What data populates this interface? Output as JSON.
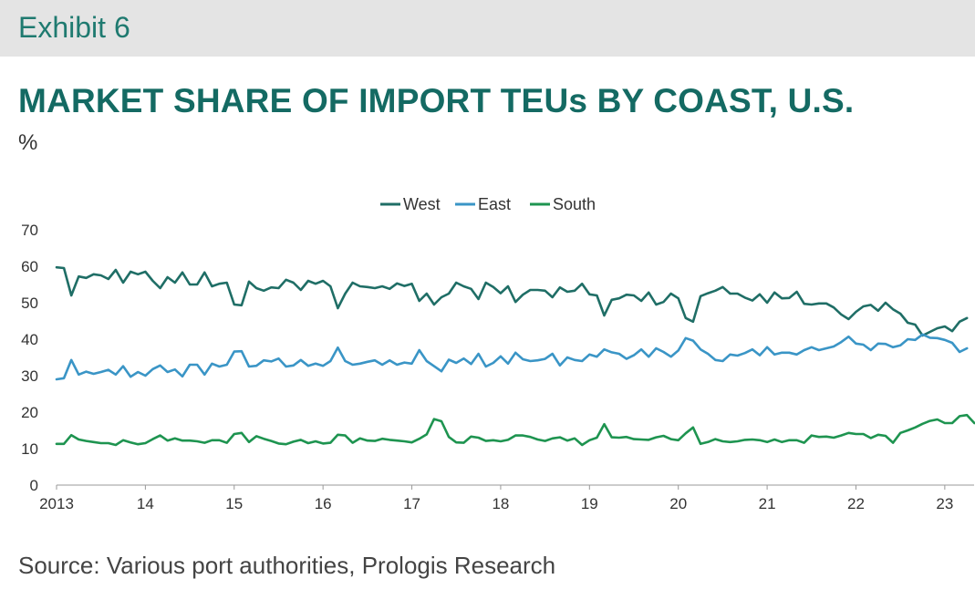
{
  "header": {
    "exhibit": "Exhibit 6",
    "title": "MARKET SHARE OF IMPORT TEUs BY COAST, U.S.",
    "unit": "%"
  },
  "footer": {
    "source": "Source: Various port authorities, Prologis Research"
  },
  "colors": {
    "West": "#1f6e66",
    "East": "#3a95c6",
    "South": "#1e9450",
    "axis": "#999999",
    "text": "#333333"
  },
  "chart_data": {
    "type": "line",
    "ylim": [
      0,
      70
    ],
    "yticks": [
      0,
      10,
      20,
      30,
      40,
      50,
      60,
      70
    ],
    "xlim": [
      2013.0,
      2023.33
    ],
    "xticks": [
      {
        "value": 2013,
        "label": "2013"
      },
      {
        "value": 2014,
        "label": "14"
      },
      {
        "value": 2015,
        "label": "15"
      },
      {
        "value": 2016,
        "label": "16"
      },
      {
        "value": 2017,
        "label": "17"
      },
      {
        "value": 2018,
        "label": "18"
      },
      {
        "value": 2019,
        "label": "19"
      },
      {
        "value": 2020,
        "label": "20"
      },
      {
        "value": 2021,
        "label": "21"
      },
      {
        "value": 2022,
        "label": "22"
      },
      {
        "value": 2023,
        "label": "23"
      }
    ],
    "legend_position": "top-center",
    "grid": false,
    "x_start": "2013-01",
    "x_frequency": "monthly",
    "series": [
      {
        "name": "West",
        "values": [
          59.7,
          59.5,
          52.0,
          57.2,
          56.8,
          57.8,
          57.5,
          56.5,
          59.0,
          55.5,
          58.5,
          57.8,
          58.5,
          56.0,
          54.0,
          57.0,
          55.5,
          58.3,
          55.0,
          55.0,
          58.3,
          54.5,
          55.2,
          55.5,
          49.5,
          49.3,
          55.8,
          54.0,
          53.3,
          54.2,
          54.0,
          56.3,
          55.5,
          53.5,
          56.0,
          55.2,
          56.0,
          54.5,
          48.5,
          52.5,
          55.5,
          54.5,
          54.3,
          54.0,
          54.5,
          53.8,
          55.3,
          54.6,
          55.2,
          50.5,
          52.5,
          49.5,
          51.5,
          52.5,
          55.5,
          54.5,
          53.8,
          51.0,
          55.5,
          54.3,
          52.6,
          54.5,
          50.2,
          52.2,
          53.5,
          53.5,
          53.3,
          51.5,
          54.2,
          53.0,
          53.3,
          55.2,
          52.3,
          52.0,
          46.5,
          50.8,
          51.2,
          52.2,
          52.0,
          50.5,
          52.8,
          49.5,
          50.2,
          52.5,
          51.2,
          45.8,
          44.8,
          51.8,
          52.6,
          53.3,
          54.3,
          52.5,
          52.5,
          51.4,
          50.6,
          52.3,
          50.0,
          52.8,
          51.2,
          51.3,
          53.0,
          49.7,
          49.5,
          49.8,
          49.8,
          48.7,
          46.8,
          45.5,
          47.5,
          49.0,
          49.4,
          47.8,
          50.0,
          48.2,
          47.0,
          44.5,
          44.0,
          41.0,
          42.0,
          43.0,
          43.5,
          42.2,
          44.8,
          45.8
        ]
      },
      {
        "name": "East",
        "values": [
          29.0,
          29.3,
          34.3,
          30.3,
          31.1,
          30.5,
          31.0,
          31.6,
          30.3,
          32.6,
          29.7,
          31.0,
          30.0,
          31.8,
          32.8,
          31.0,
          31.7,
          29.8,
          33.0,
          33.0,
          30.3,
          33.3,
          32.5,
          33.0,
          36.6,
          36.7,
          32.5,
          32.7,
          34.2,
          33.9,
          34.7,
          32.5,
          32.8,
          34.3,
          32.7,
          33.3,
          32.7,
          34.0,
          37.7,
          34.0,
          33.0,
          33.3,
          33.8,
          34.2,
          33.0,
          34.2,
          33.0,
          33.6,
          33.3,
          37.0,
          34.0,
          32.6,
          31.2,
          34.4,
          33.5,
          34.7,
          33.2,
          36.0,
          32.5,
          33.5,
          35.3,
          33.3,
          36.3,
          34.5,
          34.0,
          34.2,
          34.6,
          36.0,
          32.8,
          35.0,
          34.3,
          34.0,
          35.8,
          35.2,
          37.2,
          36.4,
          36.0,
          34.6,
          35.6,
          37.2,
          35.2,
          37.5,
          36.5,
          35.2,
          36.9,
          40.3,
          39.6,
          37.2,
          36.0,
          34.3,
          34.0,
          35.8,
          35.5,
          36.2,
          37.2,
          35.6,
          37.8,
          35.8,
          36.3,
          36.3,
          35.8,
          37.0,
          37.8,
          37.0,
          37.5,
          38.0,
          39.2,
          40.7,
          38.8,
          38.5,
          37.0,
          38.8,
          38.7,
          37.8,
          38.3,
          40.0,
          39.8,
          41.3,
          40.4,
          40.3,
          39.8,
          39.0,
          36.5,
          37.5
        ]
      },
      {
        "name": "South",
        "values": [
          11.3,
          11.3,
          13.7,
          12.5,
          12.1,
          11.8,
          11.5,
          11.5,
          11.0,
          12.3,
          11.7,
          11.2,
          11.5,
          12.6,
          13.6,
          12.2,
          12.8,
          12.2,
          12.2,
          12.0,
          11.6,
          12.3,
          12.3,
          11.6,
          14.0,
          14.3,
          11.8,
          13.4,
          12.7,
          12.1,
          11.4,
          11.2,
          11.9,
          12.4,
          11.5,
          12.0,
          11.4,
          11.6,
          13.8,
          13.6,
          11.6,
          12.8,
          12.2,
          12.1,
          12.7,
          12.4,
          12.2,
          12.0,
          11.7,
          12.7,
          13.9,
          18.1,
          17.5,
          13.2,
          11.7,
          11.6,
          13.3,
          13.0,
          12.1,
          12.3,
          12.0,
          12.4,
          13.6,
          13.6,
          13.2,
          12.5,
          12.1,
          12.8,
          13.1,
          12.2,
          12.8,
          11.0,
          12.3,
          13.0,
          16.7,
          13.1,
          13.0,
          13.2,
          12.6,
          12.5,
          12.4,
          13.1,
          13.5,
          12.6,
          12.3,
          14.2,
          15.8,
          11.3,
          11.8,
          12.6,
          12.0,
          11.8,
          12.0,
          12.4,
          12.5,
          12.3,
          11.8,
          12.5,
          11.8,
          12.3,
          12.3,
          11.6,
          13.6,
          13.2,
          13.3,
          13.0,
          13.6,
          14.3,
          14.0,
          14.0,
          12.9,
          13.8,
          13.5,
          11.6,
          14.3,
          15.0,
          15.8,
          16.8,
          17.6,
          18.0,
          17.0,
          17.0,
          18.9,
          19.2,
          17.0
        ]
      }
    ]
  }
}
